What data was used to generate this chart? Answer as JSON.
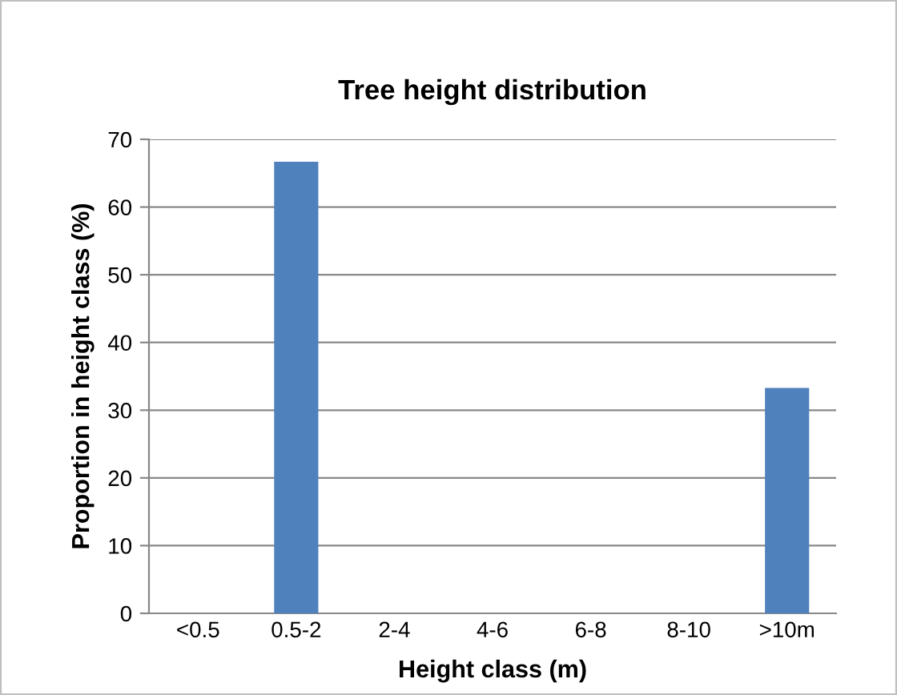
{
  "chart_data": {
    "type": "bar",
    "title": "Tree height distribution",
    "xlabel": "Height class (m)",
    "ylabel": "Proportion in height class (%)",
    "categories": [
      "<0.5",
      "0.5-2",
      "2-4",
      "4-6",
      "6-8",
      "8-10",
      ">10m"
    ],
    "values": [
      0,
      66.7,
      0,
      0,
      0,
      0,
      33.3
    ],
    "color": "#4f81bd",
    "ylim": [
      0,
      70
    ],
    "yticks": [
      0,
      10,
      20,
      30,
      40,
      50,
      60,
      70
    ],
    "grid": "y",
    "legend": false
  }
}
